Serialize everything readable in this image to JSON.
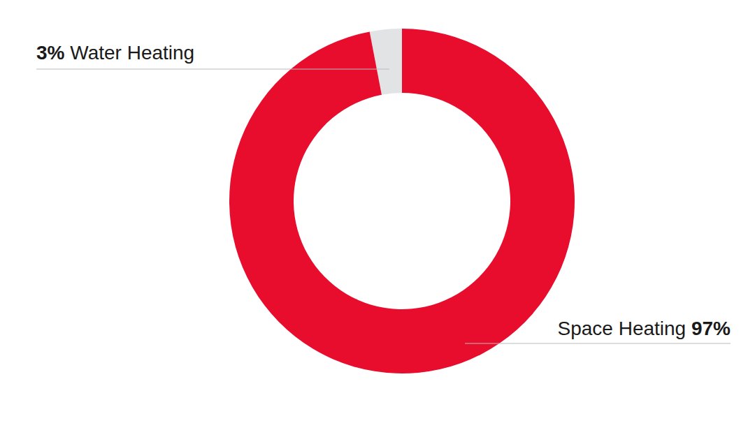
{
  "chart_data": {
    "type": "pie",
    "categories": [
      "Water Heating",
      "Space Heating"
    ],
    "values": [
      3,
      97
    ],
    "value_labels": [
      "3%",
      "97%"
    ],
    "colors": [
      "#e2e3e5",
      "#e80c2d"
    ],
    "data_labels": true
  }
}
